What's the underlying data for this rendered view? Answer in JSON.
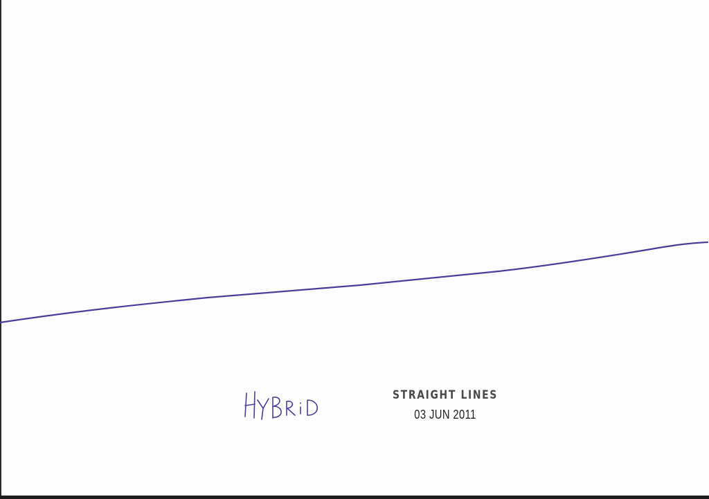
{
  "drawing": {
    "handwritten_label": "HYBRID",
    "ink_color": "#4a3d9a"
  },
  "stamp": {
    "title": "STRAIGHT LINES",
    "date": "03 JUN 2011"
  }
}
